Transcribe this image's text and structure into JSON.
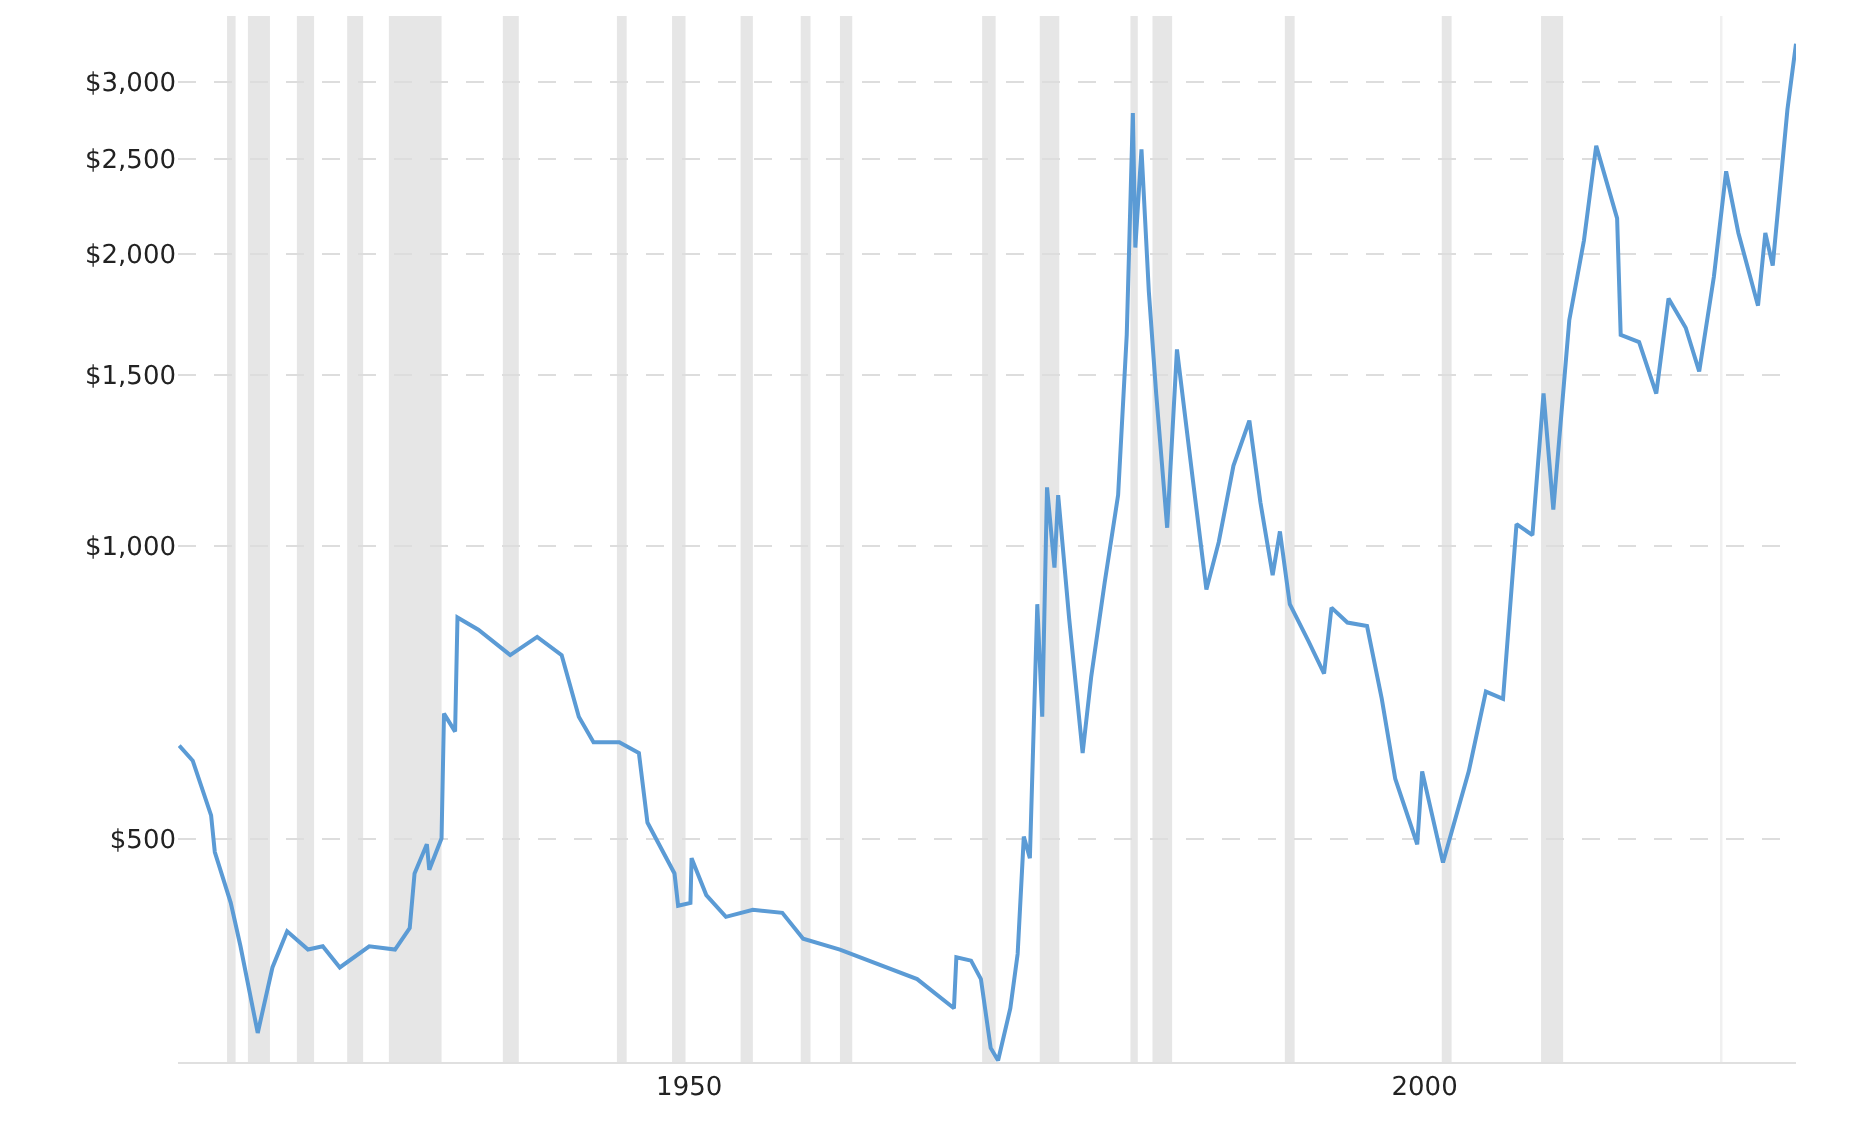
{
  "chart_data": {
    "type": "line",
    "log": "y",
    "grid": "y",
    "x": [
      "1915-05",
      "1916-04",
      "1917-07",
      "1917-10",
      "1918-11",
      "1919-07",
      "1920-09",
      "1921-09",
      "1922-09",
      "1924-02",
      "1925-02",
      "1926-04",
      "1928-04",
      "1930-01",
      "1931-01",
      "1931-05",
      "1932-03",
      "1932-05",
      "1933-03",
      "1933-05",
      "1934-02",
      "1934-04",
      "1935-09",
      "1937-11",
      "1939-09",
      "1941-05",
      "1942-07",
      "1943-07",
      "1945-04",
      "1946-08",
      "1947-03",
      "1949-01",
      "1949-04",
      "1950-02",
      "1950-03",
      "1951-03",
      "1952-07",
      "1954-05",
      "1956-05",
      "1957-10",
      "1960-04",
      "1965-07",
      "1968-01",
      "1968-03",
      "1969-03",
      "1969-11",
      "1970-07",
      "1971-01",
      "1971-11",
      "1972-05",
      "1972-10",
      "1973-03",
      "1973-09",
      "1974-01",
      "1974-05",
      "1974-11",
      "1975-02",
      "1975-11",
      "1976-10",
      "1977-05",
      "1978-04",
      "1979-03",
      "1979-10",
      "1980-03",
      "1980-05",
      "1980-10",
      "1981-04",
      "1981-10",
      "1982-07",
      "1983-03",
      "1984-04",
      "1985-03",
      "1986-01",
      "1987-01",
      "1988-02",
      "1988-11",
      "1989-09",
      "1990-03",
      "1990-11",
      "1992-02",
      "1993-03",
      "1993-09",
      "1994-10",
      "1996-02",
      "1997-02",
      "1998-01",
      "1999-07",
      "1999-11",
      "2001-04",
      "2003-01",
      "2004-03",
      "2005-05",
      "2006-04",
      "2007-05",
      "2008-02",
      "2008-10",
      "2009-11",
      "2010-11",
      "2011-09",
      "2013-02",
      "2013-05",
      "2014-08",
      "2015-10",
      "2016-08",
      "2017-10",
      "2018-09",
      "2019-09",
      "2020-07",
      "2021-05",
      "2022-09",
      "2023-03",
      "2023-09",
      "2024-09",
      "2025-04"
    ],
    "series": [
      {
        "color": "#5b9bd5",
        "values": [
          624,
          602,
          529,
          485,
          430,
          388,
          316,
          369,
          402,
          385,
          388,
          369,
          388,
          385,
          405,
          461,
          494,
          465,
          501,
          673,
          645,
          845,
          821,
          773,
          807,
          773,
          668,
          629,
          629,
          613,
          520,
          461,
          427,
          430,
          478,
          438,
          416,
          423,
          420,
          395,
          385,
          359,
          335,
          378,
          375,
          359,
          305,
          296,
          335,
          381,
          503,
          478,
          872,
          668,
          1150,
          951,
          1129,
          843,
          613,
          734,
          918,
          1129,
          1650,
          2790,
          2029,
          2560,
          1830,
          1436,
          1045,
          1594,
          1169,
          903,
          1010,
          1210,
          1347,
          1110,
          934,
          1036,
          872,
          800,
          740,
          865,
          835,
          828,
          697,
          577,
          494,
          587,
          473,
          587,
          709,
          697,
          1054,
          1027,
          1436,
          1091,
          1708,
          2064,
          2581,
          2174,
          1650,
          1622,
          1436,
          1798,
          1678,
          1513,
          1893,
          2430,
          2100,
          1768,
          2100,
          1944,
          2815,
          3287
        ]
      }
    ],
    "xlim": [
      "1915-04",
      "2025-04"
    ],
    "xticks": [
      "1950",
      "2000"
    ],
    "ylim": [
      295,
      3510
    ],
    "yticks": [
      {
        "value": 500,
        "label": "$500"
      },
      {
        "value": 1000,
        "label": "$1,000"
      },
      {
        "value": 1500,
        "label": "$1,500"
      },
      {
        "value": 2000,
        "label": "$2,000"
      },
      {
        "value": 2500,
        "label": "$2,500"
      },
      {
        "value": 3000,
        "label": "$3,000"
      }
    ],
    "bands": [
      {
        "axis": "x",
        "from": "1918-08",
        "to": "1919-03",
        "color": "#e6e6e6"
      },
      {
        "axis": "x",
        "from": "1920-01",
        "to": "1921-07",
        "color": "#e6e6e6"
      },
      {
        "axis": "x",
        "from": "1923-05",
        "to": "1924-07",
        "color": "#e6e6e6"
      },
      {
        "axis": "x",
        "from": "1926-10",
        "to": "1927-11",
        "color": "#e6e6e6"
      },
      {
        "axis": "x",
        "from": "1929-08",
        "to": "1933-03",
        "color": "#e6e6e6"
      },
      {
        "axis": "x",
        "from": "1937-05",
        "to": "1938-06",
        "color": "#e6e6e6"
      },
      {
        "axis": "x",
        "from": "1945-02",
        "to": "1945-10",
        "color": "#e6e6e6"
      },
      {
        "axis": "x",
        "from": "1948-11",
        "to": "1949-10",
        "color": "#e6e6e6"
      },
      {
        "axis": "x",
        "from": "1953-07",
        "to": "1954-05",
        "color": "#e6e6e6"
      },
      {
        "axis": "x",
        "from": "1957-08",
        "to": "1958-04",
        "color": "#e6e6e6"
      },
      {
        "axis": "x",
        "from": "1960-04",
        "to": "1961-02",
        "color": "#e6e6e6"
      },
      {
        "axis": "x",
        "from": "1969-12",
        "to": "1970-11",
        "color": "#e6e6e6"
      },
      {
        "axis": "x",
        "from": "1973-11",
        "to": "1975-03",
        "color": "#e6e6e6"
      },
      {
        "axis": "x",
        "from": "1980-01",
        "to": "1980-07",
        "color": "#e6e6e6"
      },
      {
        "axis": "x",
        "from": "1981-07",
        "to": "1982-11",
        "color": "#e6e6e6"
      },
      {
        "axis": "x",
        "from": "1990-07",
        "to": "1991-03",
        "color": "#e6e6e6"
      },
      {
        "axis": "x",
        "from": "2001-03",
        "to": "2001-11",
        "color": "#e6e6e6"
      },
      {
        "axis": "x",
        "from": "2007-12",
        "to": "2009-06",
        "color": "#e6e6e6"
      },
      {
        "axis": "x",
        "from": "2020-02",
        "to": "2020-04",
        "color": "#f0f0f0"
      }
    ]
  }
}
